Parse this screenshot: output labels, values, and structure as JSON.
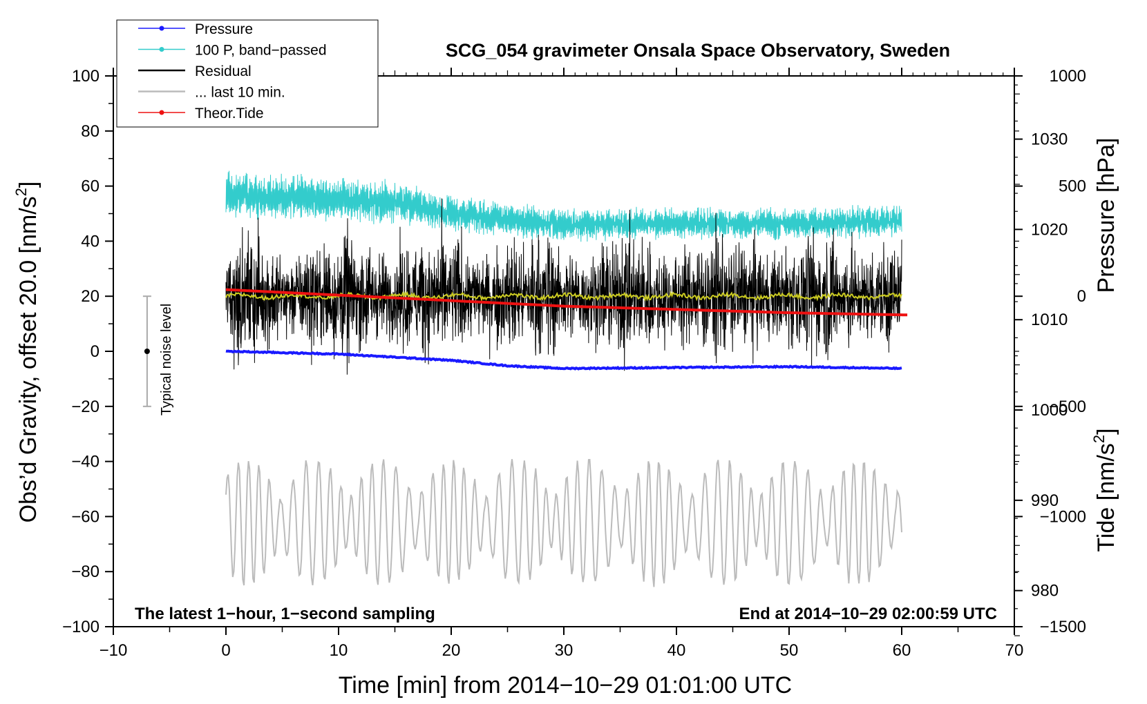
{
  "chart_data": {
    "type": "line",
    "title": "SCG_054 gravimeter Onsala Space Observatory, Sweden",
    "xlabel": "Time [min] from 2014−10−29 01:01:00 UTC",
    "ylabel": "Obs’d Gravity, offset 20.0 [nm/s",
    "ylabel_sup": "2",
    "ylabel_end": "]",
    "y2label": "Pressure [hPa]",
    "y3label": "Tide [nm/s",
    "y3label_sup": "2",
    "y3label_end": "]",
    "xlim": [
      -10,
      70
    ],
    "ylim": [
      -100,
      100
    ],
    "pressure_axis_range": [
      976,
      1037
    ],
    "tide_axis_range": [
      -1500,
      1000
    ],
    "x_ticks": [
      "−10",
      "0",
      "10",
      "20",
      "30",
      "40",
      "50",
      "60",
      "70"
    ],
    "y_ticks": [
      "100",
      "80",
      "60",
      "40",
      "20",
      "0",
      "−20",
      "−40",
      "−60",
      "−80",
      "−100"
    ],
    "pressure_ticks": [
      "1030",
      "1020",
      "1010",
      "1000",
      "990",
      "980"
    ],
    "tide_ticks": [
      "1000",
      "500",
      "0",
      "−500",
      "−1000",
      "−1500"
    ],
    "notes": {
      "left": "The latest 1−hour, 1−second sampling",
      "right": "End at 2014−10−29 02:00:59 UTC"
    },
    "noise_bar": {
      "label": "Typical noise level",
      "x": -7,
      "center": 0,
      "low": -20,
      "high": 20
    },
    "legend": [
      {
        "label": "Pressure",
        "color": "#1a1aff",
        "marker": true
      },
      {
        "label": "100 P, band−passed",
        "color": "#33cccc",
        "marker": true
      },
      {
        "label": "Residual",
        "color": "#000000",
        "marker": false
      },
      {
        "label": "... last 10 min.",
        "color": "#bbbbbb",
        "marker": false
      },
      {
        "label": "Theor.Tide",
        "color": "#ee1111",
        "marker": true
      }
    ],
    "series": [
      {
        "name": "Pressure",
        "axis": "pressure",
        "x": [
          0,
          10,
          20,
          25,
          30,
          40,
          50,
          60
        ],
        "values": [
          1006.5,
          1006.2,
          1005.5,
          1004.9,
          1004.6,
          1004.7,
          1004.8,
          1004.6
        ]
      },
      {
        "name": "100 P, band−passed",
        "axis": "gravity",
        "x": [
          0,
          15,
          20,
          30,
          60
        ],
        "center": [
          57,
          54,
          50,
          46,
          47
        ],
        "amplitude": [
          8,
          7,
          6,
          5,
          5
        ]
      },
      {
        "name": "Residual",
        "axis": "gravity",
        "x": [
          0,
          60
        ],
        "center": [
          20,
          20
        ],
        "amplitude": [
          12,
          12
        ]
      },
      {
        "name": "Residual smoothed",
        "axis": "gravity",
        "x": [
          0,
          60
        ],
        "values": [
          20,
          20
        ]
      },
      {
        "name": "... last 10 min.",
        "axis": "gravity",
        "x": [
          0,
          60
        ],
        "center": [
          -62,
          -62
        ],
        "amplitude": [
          14,
          14
        ]
      },
      {
        "name": "Theor.Tide",
        "axis": "tide",
        "x": [
          0,
          10,
          20,
          30,
          40,
          50,
          60.5
        ],
        "values": [
          30,
          5,
          -20,
          -45,
          -60,
          -75,
          -85
        ]
      }
    ]
  }
}
